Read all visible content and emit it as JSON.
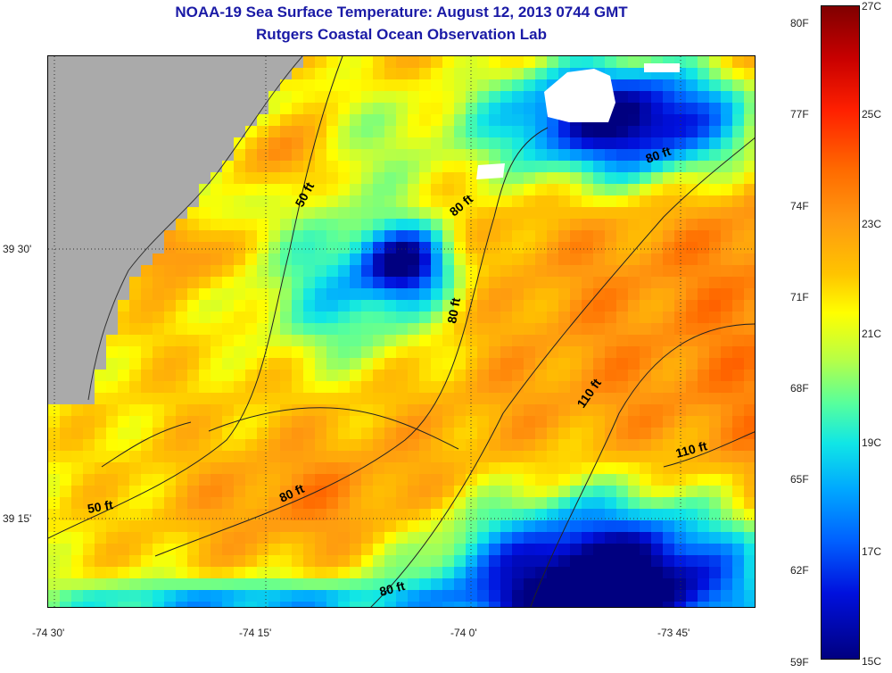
{
  "title_line1": "NOAA-19 Sea Surface Temperature:  August 12, 2013 0744 GMT",
  "title_line2": "Rutgers Coastal Ocean Observation Lab",
  "axes": {
    "x_tick_labels": [
      "-74 30'",
      "-74 15'",
      "-74 0'",
      "-73 45'"
    ],
    "y_tick_labels": [
      "39 30'",
      "39 15'"
    ]
  },
  "depth_contours": [
    "50 ft",
    "50 ft",
    "80 ft",
    "80 ft",
    "80 ft",
    "80 ft",
    "80 ft",
    "110 ft",
    "110 ft"
  ],
  "colorbar": {
    "fahrenheit_labels": [
      "80F",
      "77F",
      "74F",
      "71F",
      "68F",
      "65F",
      "62F",
      "59F"
    ],
    "celsius_labels": [
      "27C",
      "25C",
      "23C",
      "21C",
      "19C",
      "17C",
      "15C"
    ],
    "min_c": 15,
    "max_c": 27
  },
  "colors": {
    "title": "#1a1aa6",
    "land": "#aaaaaa",
    "cloud": "#ffffff"
  }
}
